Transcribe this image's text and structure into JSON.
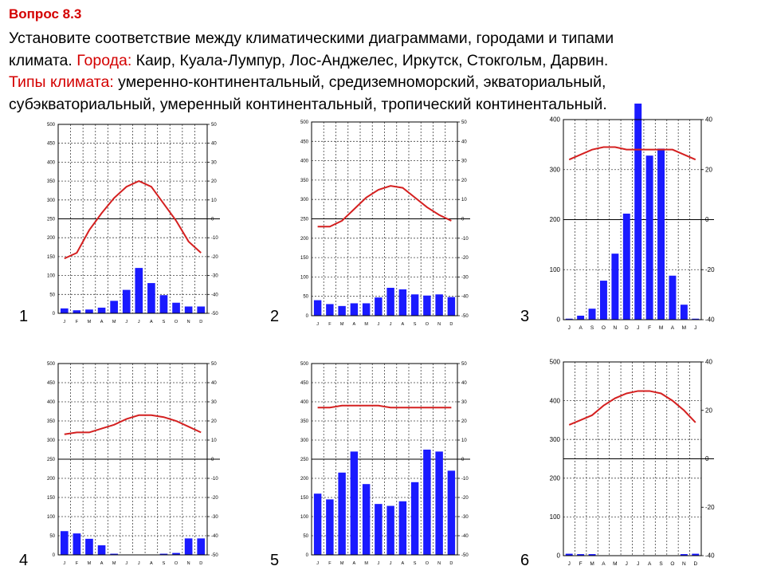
{
  "question": {
    "title": "Вопрос 8.3",
    "line1": "Установите соответствие между климатическими диаграммами, городами и типами",
    "line2_pre": "климата. ",
    "cities_label": "Города:",
    "cities": " Каир, Куала-Лумпур, Лос-Анджелес, Иркутск, Стокгольм, Дарвин.",
    "climates_label": "Типы климата:",
    "climates_1": " умеренно-континентальный, средиземноморский, экваториальный,",
    "climates_2": "субэкваториальный, умеренный континентальный, тропический континентальный."
  },
  "chart_colors": {
    "bars": "#1a1aff",
    "temperature": "#d42020",
    "grid": "#000000"
  },
  "chart_data": [
    {
      "number": "1",
      "type": "bar+line",
      "months": [
        "J",
        "F",
        "M",
        "A",
        "M",
        "J",
        "J",
        "A",
        "S",
        "O",
        "N",
        "D"
      ],
      "precip_ticks": [
        0,
        50,
        100,
        150,
        200,
        250,
        300,
        350,
        400,
        450,
        500
      ],
      "temp_ticks": [
        -50,
        -40,
        -30,
        -20,
        -10,
        0,
        10,
        20,
        30,
        40,
        50
      ],
      "precip": [
        13,
        8,
        10,
        15,
        33,
        62,
        120,
        80,
        48,
        28,
        18,
        18
      ],
      "temp": [
        -21,
        -18,
        -6,
        3,
        11,
        17,
        20,
        17,
        8,
        -1,
        -12,
        -18
      ]
    },
    {
      "number": "2",
      "type": "bar+line",
      "months": [
        "J",
        "F",
        "M",
        "A",
        "M",
        "J",
        "J",
        "A",
        "S",
        "O",
        "N",
        "D"
      ],
      "precip_ticks": [
        0,
        50,
        100,
        150,
        200,
        250,
        300,
        350,
        400,
        450,
        500
      ],
      "temp_ticks": [
        -50,
        -40,
        -30,
        -20,
        -10,
        0,
        10,
        20,
        30,
        40,
        50
      ],
      "precip": [
        40,
        30,
        25,
        32,
        32,
        47,
        72,
        68,
        55,
        52,
        55,
        48
      ],
      "temp": [
        -4,
        -4,
        -1,
        5,
        11,
        15,
        17,
        16,
        11,
        6,
        2,
        -1
      ]
    },
    {
      "number": "3",
      "type": "bar+line",
      "months": [
        "J",
        "A",
        "S",
        "O",
        "N",
        "D",
        "J",
        "F",
        "M",
        "A",
        "M",
        "J"
      ],
      "precip_ticks": [
        0,
        100,
        200,
        300,
        400
      ],
      "temp_ticks": [
        -40,
        -20,
        0,
        20,
        40
      ],
      "precip": [
        2,
        8,
        22,
        78,
        132,
        212,
        432,
        328,
        342,
        88,
        30,
        2
      ],
      "temp": [
        24,
        26,
        28,
        29,
        29,
        28,
        28,
        28,
        28,
        28,
        26,
        24
      ]
    },
    {
      "number": "4",
      "type": "bar+line",
      "months": [
        "J",
        "F",
        "M",
        "A",
        "M",
        "J",
        "J",
        "A",
        "S",
        "O",
        "N",
        "D"
      ],
      "precip_ticks": [
        0,
        50,
        100,
        150,
        200,
        250,
        300,
        350,
        400,
        450,
        500
      ],
      "temp_ticks": [
        -50,
        -40,
        -30,
        -20,
        -10,
        0,
        10,
        20,
        30,
        40,
        50
      ],
      "precip": [
        62,
        56,
        42,
        25,
        3,
        0,
        0,
        0,
        3,
        5,
        43,
        43
      ],
      "temp": [
        13,
        14,
        14,
        16,
        18,
        21,
        23,
        23,
        22,
        20,
        17,
        14
      ]
    },
    {
      "number": "5",
      "type": "bar+line",
      "months": [
        "J",
        "F",
        "M",
        "A",
        "M",
        "J",
        "J",
        "A",
        "S",
        "O",
        "N",
        "D"
      ],
      "precip_ticks": [
        0,
        50,
        100,
        150,
        200,
        250,
        300,
        350,
        400,
        450,
        500
      ],
      "temp_ticks": [
        -50,
        -40,
        -30,
        -20,
        -10,
        0,
        10,
        20,
        30,
        40,
        50
      ],
      "precip": [
        160,
        145,
        215,
        270,
        185,
        133,
        128,
        140,
        190,
        275,
        270,
        220
      ],
      "temp": [
        27,
        27,
        28,
        28,
        28,
        28,
        27,
        27,
        27,
        27,
        27,
        27
      ]
    },
    {
      "number": "6",
      "type": "bar+line",
      "months": [
        "J",
        "F",
        "M",
        "A",
        "M",
        "J",
        "J",
        "A",
        "S",
        "O",
        "N",
        "D"
      ],
      "precip_ticks": [
        0,
        100,
        200,
        300,
        400,
        500
      ],
      "temp_ticks": [
        -40,
        -20,
        0,
        20,
        40
      ],
      "precip": [
        5,
        4,
        4,
        1,
        1,
        0,
        0,
        0,
        0,
        1,
        4,
        5
      ],
      "temp": [
        14,
        16,
        18,
        22,
        25,
        27,
        28,
        28,
        27,
        24,
        20,
        15
      ]
    }
  ]
}
